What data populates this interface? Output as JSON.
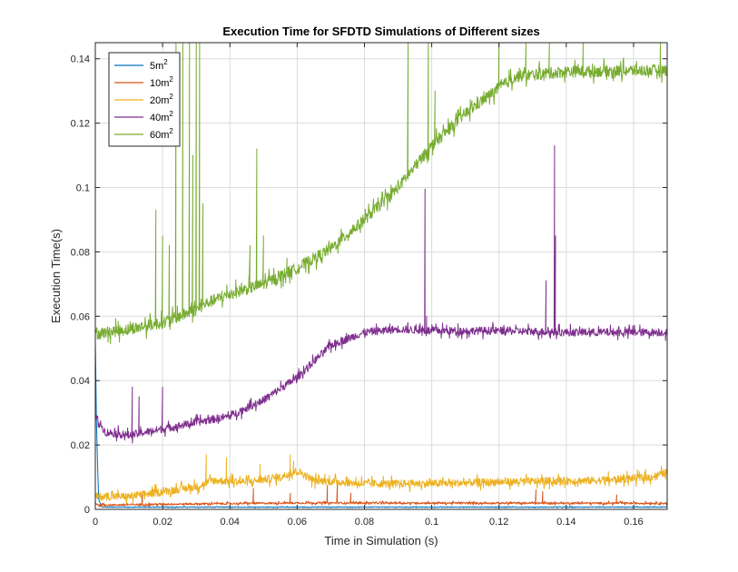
{
  "chart_data": {
    "type": "line",
    "title": "Execution Time for SFDTD Simulations of Different sizes",
    "xlabel": "Time in Simulation (s)",
    "ylabel": "Execution Time(s)",
    "xlim": [
      0,
      0.17
    ],
    "ylim": [
      0,
      0.145
    ],
    "x_ticks": [
      "0",
      "0.02",
      "0.04",
      "0.06",
      "0.08",
      "0.1",
      "0.12",
      "0.14",
      "0.16"
    ],
    "y_ticks": [
      "0",
      "0.02",
      "0.04",
      "0.06",
      "0.08",
      "0.1",
      "0.12",
      "0.14"
    ],
    "grid": true,
    "legend_position": "top-left",
    "series": [
      {
        "name": "5m",
        "superscript": "2",
        "color": "#0072BD",
        "points": [
          [
            0,
            0.052
          ],
          [
            0.0003,
            0.03
          ],
          [
            0.0006,
            0.016
          ],
          [
            0.001,
            0.003
          ],
          [
            0.002,
            0.0007
          ],
          [
            0.17,
            0.0007
          ]
        ],
        "noise": 0.0001,
        "spikes": []
      },
      {
        "name": "10m",
        "superscript": "2",
        "color": "#D95319",
        "points": [
          [
            0,
            0.002
          ],
          [
            0.001,
            0.0013
          ],
          [
            0.02,
            0.0016
          ],
          [
            0.04,
            0.0018
          ],
          [
            0.06,
            0.002
          ],
          [
            0.17,
            0.0019
          ]
        ],
        "noise": 0.0003,
        "spikes": [
          [
            0.014,
            0.0055
          ],
          [
            0.047,
            0.0065
          ],
          [
            0.058,
            0.005
          ],
          [
            0.069,
            0.0075
          ],
          [
            0.072,
            0.009
          ],
          [
            0.076,
            0.005
          ],
          [
            0.131,
            0.006
          ],
          [
            0.133,
            0.0055
          ],
          [
            0.155,
            0.0045
          ]
        ]
      },
      {
        "name": "20m",
        "superscript": "2",
        "color": "#EDB120",
        "points": [
          [
            0,
            0.004
          ],
          [
            0.01,
            0.004
          ],
          [
            0.02,
            0.0055
          ],
          [
            0.03,
            0.007
          ],
          [
            0.035,
            0.009
          ],
          [
            0.045,
            0.0085
          ],
          [
            0.055,
            0.01
          ],
          [
            0.06,
            0.012
          ],
          [
            0.065,
            0.009
          ],
          [
            0.08,
            0.008
          ],
          [
            0.1,
            0.008
          ],
          [
            0.12,
            0.0085
          ],
          [
            0.15,
            0.009
          ],
          [
            0.165,
            0.01
          ],
          [
            0.17,
            0.0115
          ]
        ],
        "noise": 0.0012,
        "spikes": [
          [
            0.033,
            0.017
          ],
          [
            0.039,
            0.016
          ],
          [
            0.049,
            0.014
          ],
          [
            0.058,
            0.017
          ],
          [
            0.059,
            0.015
          ]
        ]
      },
      {
        "name": "40m",
        "superscript": "2",
        "color": "#7E2F8E",
        "points": [
          [
            0,
            0.029
          ],
          [
            0.003,
            0.024
          ],
          [
            0.01,
            0.023
          ],
          [
            0.02,
            0.025
          ],
          [
            0.03,
            0.027
          ],
          [
            0.04,
            0.029
          ],
          [
            0.05,
            0.034
          ],
          [
            0.06,
            0.041
          ],
          [
            0.07,
            0.051
          ],
          [
            0.08,
            0.055
          ],
          [
            0.09,
            0.056
          ],
          [
            0.1,
            0.0555
          ],
          [
            0.12,
            0.0555
          ],
          [
            0.14,
            0.055
          ],
          [
            0.17,
            0.055
          ]
        ],
        "noise": 0.0012,
        "spikes": [
          [
            0.011,
            0.038
          ],
          [
            0.013,
            0.035
          ],
          [
            0.02,
            0.038
          ],
          [
            0.098,
            0.0995
          ],
          [
            0.0985,
            0.06
          ],
          [
            0.134,
            0.071
          ],
          [
            0.1365,
            0.113
          ],
          [
            0.1368,
            0.085
          ]
        ]
      },
      {
        "name": "60m",
        "superscript": "2",
        "color": "#77AC30",
        "points": [
          [
            0,
            0.0545
          ],
          [
            0.01,
            0.056
          ],
          [
            0.02,
            0.058
          ],
          [
            0.03,
            0.062
          ],
          [
            0.033,
            0.064
          ],
          [
            0.04,
            0.067
          ],
          [
            0.05,
            0.07
          ],
          [
            0.06,
            0.075
          ],
          [
            0.07,
            0.081
          ],
          [
            0.08,
            0.09
          ],
          [
            0.09,
            0.1
          ],
          [
            0.1,
            0.113
          ],
          [
            0.11,
            0.123
          ],
          [
            0.12,
            0.131
          ],
          [
            0.125,
            0.1345
          ],
          [
            0.14,
            0.136
          ],
          [
            0.17,
            0.1365
          ]
        ],
        "noise": 0.0018,
        "spikes": [
          [
            0.018,
            0.093
          ],
          [
            0.02,
            0.085
          ],
          [
            0.022,
            0.082
          ],
          [
            0.024,
            0.145
          ],
          [
            0.026,
            0.145
          ],
          [
            0.028,
            0.145
          ],
          [
            0.029,
            0.11
          ],
          [
            0.03,
            0.145
          ],
          [
            0.031,
            0.145
          ],
          [
            0.032,
            0.095
          ],
          [
            0.046,
            0.082
          ],
          [
            0.048,
            0.112
          ],
          [
            0.05,
            0.085
          ],
          [
            0.057,
            0.078
          ],
          [
            0.093,
            0.145
          ],
          [
            0.099,
            0.145
          ],
          [
            0.101,
            0.13
          ],
          [
            0.12,
            0.145
          ],
          [
            0.128,
            0.145
          ],
          [
            0.135,
            0.145
          ],
          [
            0.145,
            0.145
          ],
          [
            0.168,
            0.145
          ]
        ]
      }
    ]
  }
}
